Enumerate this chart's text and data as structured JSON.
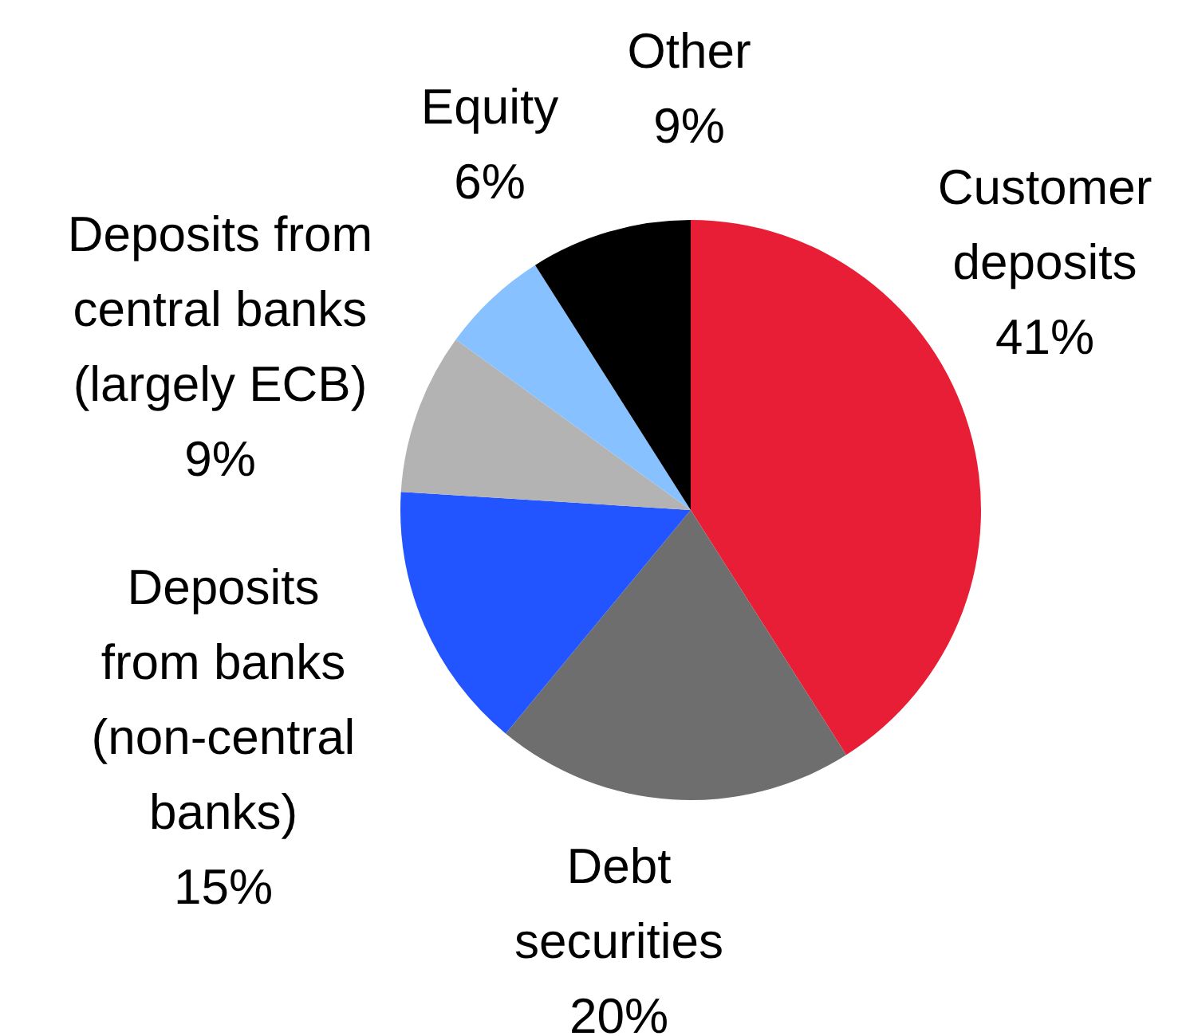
{
  "chart_data": {
    "type": "pie",
    "categories": [
      "Customer deposits",
      "Debt securities",
      "Deposits from banks (non-central banks)",
      "Deposits from central banks (largely ECB)",
      "Equity",
      "Other"
    ],
    "values": [
      41,
      20,
      15,
      9,
      6,
      9
    ],
    "value_labels": [
      "41%",
      "20%",
      "15%",
      "9%",
      "6%",
      "9%"
    ],
    "colors": [
      "#e81e36",
      "#6e6e6e",
      "#2255ff",
      "#b3b3b3",
      "#88c1ff",
      "#000000"
    ]
  }
}
